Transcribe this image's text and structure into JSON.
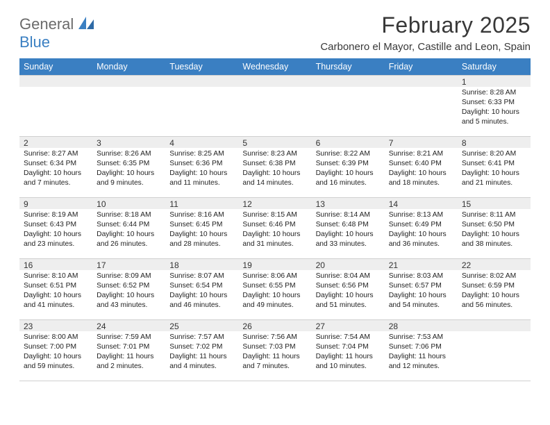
{
  "brand": {
    "part1": "General",
    "part2": "Blue"
  },
  "title": "February 2025",
  "location": "Carbonero el Mayor, Castille and Leon, Spain",
  "colors": {
    "header_bg": "#3a7fc2",
    "header_text": "#ffffff",
    "daynum_bg": "#eeeeee",
    "border": "#cfcfcf",
    "title_color": "#383838",
    "body_text": "#222222"
  },
  "typography": {
    "title_fontsize": 32,
    "location_fontsize": 15,
    "dayheader_fontsize": 12.5,
    "body_fontsize": 10.3
  },
  "day_headers": [
    "Sunday",
    "Monday",
    "Tuesday",
    "Wednesday",
    "Thursday",
    "Friday",
    "Saturday"
  ],
  "weeks": [
    [
      {
        "n": "",
        "sr": "",
        "ss": "",
        "dl": ""
      },
      {
        "n": "",
        "sr": "",
        "ss": "",
        "dl": ""
      },
      {
        "n": "",
        "sr": "",
        "ss": "",
        "dl": ""
      },
      {
        "n": "",
        "sr": "",
        "ss": "",
        "dl": ""
      },
      {
        "n": "",
        "sr": "",
        "ss": "",
        "dl": ""
      },
      {
        "n": "",
        "sr": "",
        "ss": "",
        "dl": ""
      },
      {
        "n": "1",
        "sr": "Sunrise: 8:28 AM",
        "ss": "Sunset: 6:33 PM",
        "dl": "Daylight: 10 hours and 5 minutes."
      }
    ],
    [
      {
        "n": "2",
        "sr": "Sunrise: 8:27 AM",
        "ss": "Sunset: 6:34 PM",
        "dl": "Daylight: 10 hours and 7 minutes."
      },
      {
        "n": "3",
        "sr": "Sunrise: 8:26 AM",
        "ss": "Sunset: 6:35 PM",
        "dl": "Daylight: 10 hours and 9 minutes."
      },
      {
        "n": "4",
        "sr": "Sunrise: 8:25 AM",
        "ss": "Sunset: 6:36 PM",
        "dl": "Daylight: 10 hours and 11 minutes."
      },
      {
        "n": "5",
        "sr": "Sunrise: 8:23 AM",
        "ss": "Sunset: 6:38 PM",
        "dl": "Daylight: 10 hours and 14 minutes."
      },
      {
        "n": "6",
        "sr": "Sunrise: 8:22 AM",
        "ss": "Sunset: 6:39 PM",
        "dl": "Daylight: 10 hours and 16 minutes."
      },
      {
        "n": "7",
        "sr": "Sunrise: 8:21 AM",
        "ss": "Sunset: 6:40 PM",
        "dl": "Daylight: 10 hours and 18 minutes."
      },
      {
        "n": "8",
        "sr": "Sunrise: 8:20 AM",
        "ss": "Sunset: 6:41 PM",
        "dl": "Daylight: 10 hours and 21 minutes."
      }
    ],
    [
      {
        "n": "9",
        "sr": "Sunrise: 8:19 AM",
        "ss": "Sunset: 6:43 PM",
        "dl": "Daylight: 10 hours and 23 minutes."
      },
      {
        "n": "10",
        "sr": "Sunrise: 8:18 AM",
        "ss": "Sunset: 6:44 PM",
        "dl": "Daylight: 10 hours and 26 minutes."
      },
      {
        "n": "11",
        "sr": "Sunrise: 8:16 AM",
        "ss": "Sunset: 6:45 PM",
        "dl": "Daylight: 10 hours and 28 minutes."
      },
      {
        "n": "12",
        "sr": "Sunrise: 8:15 AM",
        "ss": "Sunset: 6:46 PM",
        "dl": "Daylight: 10 hours and 31 minutes."
      },
      {
        "n": "13",
        "sr": "Sunrise: 8:14 AM",
        "ss": "Sunset: 6:48 PM",
        "dl": "Daylight: 10 hours and 33 minutes."
      },
      {
        "n": "14",
        "sr": "Sunrise: 8:13 AM",
        "ss": "Sunset: 6:49 PM",
        "dl": "Daylight: 10 hours and 36 minutes."
      },
      {
        "n": "15",
        "sr": "Sunrise: 8:11 AM",
        "ss": "Sunset: 6:50 PM",
        "dl": "Daylight: 10 hours and 38 minutes."
      }
    ],
    [
      {
        "n": "16",
        "sr": "Sunrise: 8:10 AM",
        "ss": "Sunset: 6:51 PM",
        "dl": "Daylight: 10 hours and 41 minutes."
      },
      {
        "n": "17",
        "sr": "Sunrise: 8:09 AM",
        "ss": "Sunset: 6:52 PM",
        "dl": "Daylight: 10 hours and 43 minutes."
      },
      {
        "n": "18",
        "sr": "Sunrise: 8:07 AM",
        "ss": "Sunset: 6:54 PM",
        "dl": "Daylight: 10 hours and 46 minutes."
      },
      {
        "n": "19",
        "sr": "Sunrise: 8:06 AM",
        "ss": "Sunset: 6:55 PM",
        "dl": "Daylight: 10 hours and 49 minutes."
      },
      {
        "n": "20",
        "sr": "Sunrise: 8:04 AM",
        "ss": "Sunset: 6:56 PM",
        "dl": "Daylight: 10 hours and 51 minutes."
      },
      {
        "n": "21",
        "sr": "Sunrise: 8:03 AM",
        "ss": "Sunset: 6:57 PM",
        "dl": "Daylight: 10 hours and 54 minutes."
      },
      {
        "n": "22",
        "sr": "Sunrise: 8:02 AM",
        "ss": "Sunset: 6:59 PM",
        "dl": "Daylight: 10 hours and 56 minutes."
      }
    ],
    [
      {
        "n": "23",
        "sr": "Sunrise: 8:00 AM",
        "ss": "Sunset: 7:00 PM",
        "dl": "Daylight: 10 hours and 59 minutes."
      },
      {
        "n": "24",
        "sr": "Sunrise: 7:59 AM",
        "ss": "Sunset: 7:01 PM",
        "dl": "Daylight: 11 hours and 2 minutes."
      },
      {
        "n": "25",
        "sr": "Sunrise: 7:57 AM",
        "ss": "Sunset: 7:02 PM",
        "dl": "Daylight: 11 hours and 4 minutes."
      },
      {
        "n": "26",
        "sr": "Sunrise: 7:56 AM",
        "ss": "Sunset: 7:03 PM",
        "dl": "Daylight: 11 hours and 7 minutes."
      },
      {
        "n": "27",
        "sr": "Sunrise: 7:54 AM",
        "ss": "Sunset: 7:04 PM",
        "dl": "Daylight: 11 hours and 10 minutes."
      },
      {
        "n": "28",
        "sr": "Sunrise: 7:53 AM",
        "ss": "Sunset: 7:06 PM",
        "dl": "Daylight: 11 hours and 12 minutes."
      },
      {
        "n": "",
        "sr": "",
        "ss": "",
        "dl": ""
      }
    ]
  ]
}
